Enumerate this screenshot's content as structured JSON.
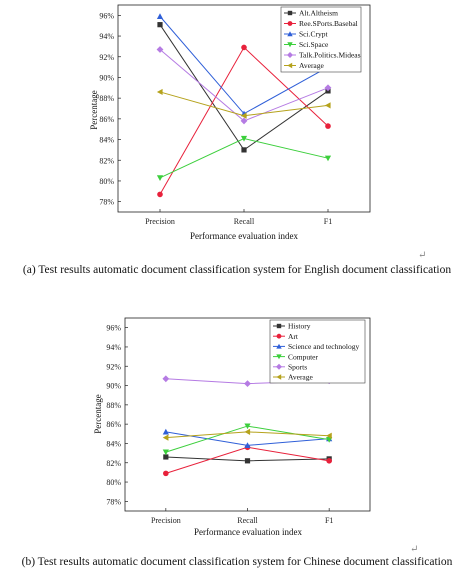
{
  "chart_data": [
    {
      "type": "line",
      "categories": [
        "Precision",
        "Recall",
        "F1"
      ],
      "xlabel": "Performance evaluation index",
      "ylabel": "Percentage",
      "ylim": [
        77,
        97
      ],
      "yticks": [
        78,
        80,
        82,
        84,
        86,
        88,
        90,
        92,
        94,
        96
      ],
      "ytick_labels": [
        "78%",
        "80%",
        "82%",
        "84%",
        "86%",
        "88%",
        "90%",
        "92%",
        "94%",
        "96%"
      ],
      "legend_position": "top-right",
      "series": [
        {
          "name": "Alt.Altheism",
          "values": [
            95.1,
            83.0,
            88.7
          ],
          "color": "#333333",
          "marker": "square"
        },
        {
          "name": "Ree.SPorts.Basebal",
          "values": [
            78.7,
            92.9,
            85.3
          ],
          "color": "#e8213b",
          "marker": "circle"
        },
        {
          "name": "Sci.Crypt",
          "values": [
            95.9,
            86.5,
            91.0
          ],
          "color": "#2f5fd8",
          "marker": "triangle-up"
        },
        {
          "name": "Sci.Space",
          "values": [
            80.3,
            84.1,
            82.2
          ],
          "color": "#3ccf3c",
          "marker": "triangle-down"
        },
        {
          "name": "Talk.Politics.Mideas",
          "values": [
            92.7,
            85.8,
            89.0
          ],
          "color": "#b57be3",
          "marker": "diamond"
        },
        {
          "name": "Average",
          "values": [
            88.6,
            86.3,
            87.3
          ],
          "color": "#b5a21c",
          "marker": "triangle-left"
        }
      ]
    },
    {
      "type": "line",
      "categories": [
        "Precision",
        "Recall",
        "F1"
      ],
      "xlabel": "Performance evaluation index",
      "ylabel": "Percentage",
      "ylim": [
        77,
        97
      ],
      "yticks": [
        78,
        80,
        82,
        84,
        86,
        88,
        90,
        92,
        94,
        96
      ],
      "ytick_labels": [
        "78%",
        "80%",
        "82%",
        "84%",
        "86%",
        "88%",
        "90%",
        "92%",
        "94%",
        "96%"
      ],
      "legend_position": "top-left",
      "series": [
        {
          "name": "History",
          "values": [
            82.6,
            82.2,
            82.4
          ],
          "color": "#333333",
          "marker": "square"
        },
        {
          "name": "Art",
          "values": [
            80.9,
            83.6,
            82.2
          ],
          "color": "#e8213b",
          "marker": "circle"
        },
        {
          "name": "Science and technology",
          "values": [
            85.2,
            83.8,
            84.5
          ],
          "color": "#2f5fd8",
          "marker": "triangle-up"
        },
        {
          "name": "Computer",
          "values": [
            83.1,
            85.8,
            84.4
          ],
          "color": "#3ccf3c",
          "marker": "triangle-down"
        },
        {
          "name": "Sports",
          "values": [
            90.7,
            90.2,
            90.5
          ],
          "color": "#b57be3",
          "marker": "diamond"
        },
        {
          "name": "Average",
          "values": [
            84.6,
            85.2,
            84.8
          ],
          "color": "#b5a21c",
          "marker": "triangle-left"
        }
      ]
    }
  ],
  "captions": {
    "a": "(a) Test results automatic document classification system for English document classification",
    "b": "(b) Test results automatic document classification system for Chinese document classification",
    "return_mark": "↵"
  }
}
